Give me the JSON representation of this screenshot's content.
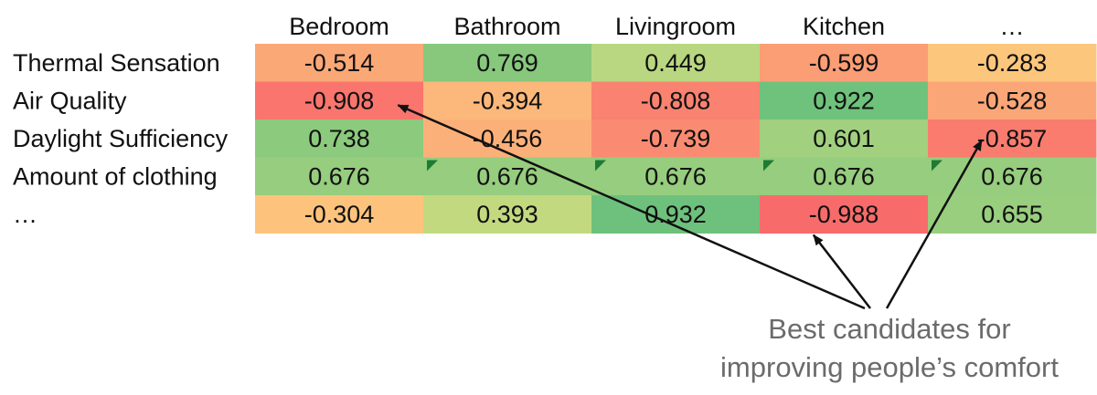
{
  "chart_data": {
    "type": "heatmap",
    "columns": [
      "Bedroom",
      "Bathroom",
      "Livingroom",
      "Kitchen",
      "…"
    ],
    "rows": [
      "Thermal Sensation",
      "Air Quality",
      "Daylight Sufficiency",
      "Amount of clothing",
      "…"
    ],
    "values": [
      [
        -0.514,
        0.769,
        0.449,
        -0.599,
        -0.283
      ],
      [
        -0.908,
        -0.394,
        -0.808,
        0.922,
        -0.528
      ],
      [
        0.738,
        -0.456,
        -0.739,
        0.601,
        -0.857
      ],
      [
        0.676,
        0.676,
        0.676,
        0.676,
        0.676
      ],
      [
        -0.304,
        0.393,
        0.932,
        -0.988,
        0.655
      ]
    ],
    "cell_labels": [
      [
        "-0.514",
        "0.769",
        "0.449",
        "-0.599",
        "-0.283"
      ],
      [
        "-0.908",
        "-0.394",
        "-0.808",
        "0.922",
        "-0.528"
      ],
      [
        "0.738",
        "-0.456",
        "-0.739",
        "0.601",
        "-0.857"
      ],
      [
        "0.676",
        "0.676",
        "0.676",
        "0.676",
        "0.676"
      ],
      [
        "-0.304",
        "0.393",
        "0.932",
        "-0.988",
        "0.655"
      ]
    ],
    "color_scale": {
      "negative": "#f8696b",
      "middle": "#ffeb84",
      "positive": "#63be7b"
    },
    "markers": [
      {
        "row": 3,
        "col": 1
      },
      {
        "row": 3,
        "col": 2
      },
      {
        "row": 3,
        "col": 3
      },
      {
        "row": 3,
        "col": 4
      }
    ],
    "annotation": {
      "lines": [
        "Best candidates for",
        "improving people’s comfort"
      ],
      "targets": [
        {
          "row": 1,
          "col": 0
        },
        {
          "row": 4,
          "col": 3
        },
        {
          "row": 2,
          "col": 4
        }
      ]
    }
  }
}
